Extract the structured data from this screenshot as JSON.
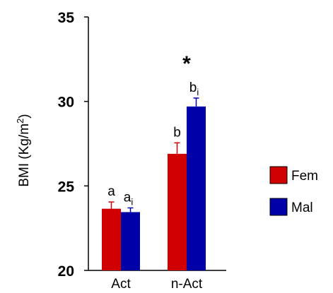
{
  "chart_data": {
    "type": "bar",
    "ylabel_main": "BMI (Kg/m",
    "ylabel_sup": "2",
    "ylabel_end": ")",
    "xlabel": "",
    "ylim": [
      20,
      35
    ],
    "yticks": [
      "35",
      "30",
      "25",
      "20"
    ],
    "ytick_values": [
      35,
      30,
      25,
      20
    ],
    "categories": [
      "Act",
      "n-Act"
    ],
    "series": [
      {
        "name": "Fem",
        "color": "#d00000",
        "values": [
          23.65,
          26.9
        ],
        "errors": [
          0.4,
          0.65
        ],
        "letters": [
          {
            "main": "a",
            "sub": ""
          },
          {
            "main": "b",
            "sub": ""
          }
        ]
      },
      {
        "name": "Mal",
        "color": "#0000a8",
        "values": [
          23.45,
          29.7
        ],
        "errors": [
          0.25,
          0.5
        ],
        "letters": [
          {
            "main": "a",
            "sub": "i"
          },
          {
            "main": "b",
            "sub": "i"
          }
        ]
      }
    ],
    "group_annotation": [
      "",
      "*"
    ],
    "legend_position": "right",
    "grid": false
  }
}
